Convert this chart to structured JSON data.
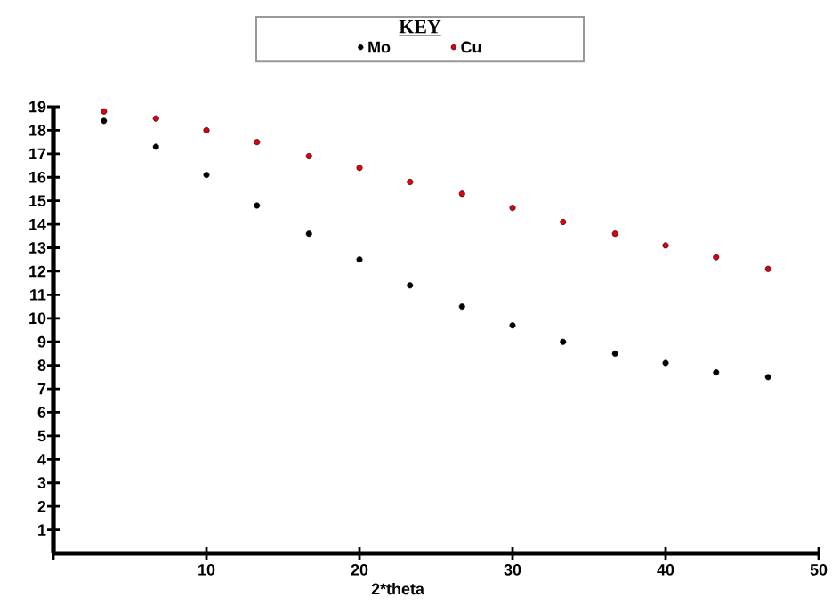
{
  "chart_data": {
    "type": "scatter",
    "xlabel": "2*theta",
    "legend_title": "KEY",
    "legend": "top",
    "marker": "circle",
    "xlim": [
      0,
      50
    ],
    "ylim": [
      0,
      19
    ],
    "xticks": [
      {
        "value": 0,
        "label": null
      },
      10,
      20,
      30,
      40,
      50
    ],
    "yticks": [
      1,
      2,
      3,
      4,
      5,
      6,
      7,
      8,
      9,
      10,
      11,
      12,
      13,
      14,
      15,
      16,
      17,
      18,
      19
    ],
    "x": [
      3.3,
      6.7,
      10,
      13.3,
      16.7,
      20,
      23.3,
      26.7,
      30,
      33.3,
      36.7,
      40,
      43.3,
      46.7
    ],
    "series": [
      {
        "name": "Mo",
        "color": "#000000",
        "values": [
          18.4,
          17.3,
          16.1,
          14.8,
          13.6,
          12.5,
          11.4,
          10.5,
          9.7,
          9.0,
          8.5,
          8.1,
          7.7,
          7.5
        ]
      },
      {
        "name": "Cu",
        "color": "#e00010",
        "values": [
          18.8,
          18.5,
          18.0,
          17.5,
          16.9,
          16.4,
          15.8,
          15.3,
          14.7,
          14.1,
          13.6,
          13.1,
          12.6,
          12.1
        ]
      }
    ]
  }
}
